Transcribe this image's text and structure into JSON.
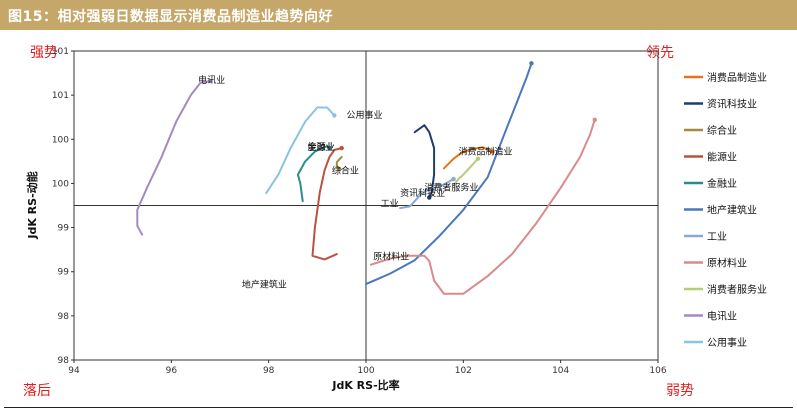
{
  "header": {
    "title": "图15：相对强弱日数据显示消费品制造业趋势向好"
  },
  "quadrants": {
    "top_left": "强势",
    "top_right": "领先",
    "bottom_left": "落后",
    "bottom_right": "弱势"
  },
  "chart_data": {
    "type": "line",
    "subtype": "relative-rotation-graph",
    "xlabel": "JdK RS-比率",
    "ylabel": "JdK RS-动能",
    "xlim": [
      94,
      106
    ],
    "ylim": [
      98,
      101.5
    ],
    "x_ticks": [
      94,
      96,
      98,
      100,
      102,
      104,
      106
    ],
    "y_ticks": [
      {
        "value": 98,
        "label": "98"
      },
      {
        "value": 98.5,
        "label": "98"
      },
      {
        "value": 99,
        "label": "99"
      },
      {
        "value": 99.5,
        "label": "99"
      },
      {
        "value": 100,
        "label": "100"
      },
      {
        "value": 100.5,
        "label": "100"
      },
      {
        "value": 101,
        "label": "101"
      },
      {
        "value": 101.5,
        "label": "101"
      }
    ],
    "grid": false,
    "legend_position": "right",
    "series": [
      {
        "name": "消费品制造业",
        "color": "#e8731a",
        "label_at": [
          101.9,
          100.33
        ],
        "points": [
          [
            101.6,
            100.17
          ],
          [
            101.8,
            100.28
          ],
          [
            102.0,
            100.36
          ],
          [
            102.2,
            100.39
          ],
          [
            102.4,
            100.41
          ],
          [
            102.5,
            100.38
          ],
          [
            102.6,
            100.36
          ]
        ]
      },
      {
        "name": "资讯科技业",
        "color": "#1f3d6d",
        "label_at": [
          100.7,
          99.86
        ],
        "points": [
          [
            101.0,
            100.58
          ],
          [
            101.2,
            100.66
          ],
          [
            101.3,
            100.58
          ],
          [
            101.4,
            100.4
          ],
          [
            101.4,
            100.1
          ],
          [
            101.35,
            99.9
          ],
          [
            101.3,
            99.84
          ]
        ]
      },
      {
        "name": "综合业",
        "color": "#a58a3c",
        "label_at": [
          99.3,
          100.11
        ],
        "points": [
          [
            99.5,
            100.3
          ],
          [
            99.45,
            100.27
          ],
          [
            99.4,
            100.24
          ],
          [
            99.4,
            100.2
          ],
          [
            99.45,
            100.16
          ]
        ]
      },
      {
        "name": "能源业",
        "color": "#b9523e",
        "label_at": [
          98.8,
          100.38
        ],
        "points": [
          [
            99.4,
            99.2
          ],
          [
            99.15,
            99.14
          ],
          [
            98.9,
            99.18
          ],
          [
            98.95,
            99.5
          ],
          [
            99.05,
            99.9
          ],
          [
            99.15,
            100.15
          ],
          [
            99.25,
            100.3
          ],
          [
            99.35,
            100.38
          ],
          [
            99.5,
            100.4
          ]
        ]
      },
      {
        "name": "金融业",
        "color": "#2a8c8c",
        "label_at": [
          98.8,
          100.38
        ],
        "points": [
          [
            98.7,
            99.8
          ],
          [
            98.65,
            100.0
          ],
          [
            98.6,
            100.1
          ],
          [
            98.75,
            100.25
          ],
          [
            98.95,
            100.36
          ],
          [
            99.1,
            100.4
          ],
          [
            99.2,
            100.42
          ],
          [
            99.25,
            100.4
          ]
        ]
      },
      {
        "name": "地产建筑业",
        "color": "#4a78bb",
        "label_at": [
          97.45,
          98.82
        ],
        "points": [
          [
            100.0,
            98.86
          ],
          [
            100.5,
            98.98
          ],
          [
            101.0,
            99.13
          ],
          [
            101.5,
            99.4
          ],
          [
            102.0,
            99.7
          ],
          [
            102.5,
            100.07
          ],
          [
            102.8,
            100.5
          ],
          [
            103.1,
            100.92
          ],
          [
            103.3,
            101.2
          ],
          [
            103.4,
            101.36
          ]
        ]
      },
      {
        "name": "工业",
        "color": "#89a9d4",
        "label_at": [
          100.3,
          99.74
        ],
        "points": [
          [
            100.7,
            99.72
          ],
          [
            100.9,
            99.74
          ],
          [
            101.1,
            99.86
          ],
          [
            101.3,
            99.94
          ],
          [
            101.5,
            99.96
          ],
          [
            101.7,
            100.02
          ],
          [
            101.8,
            100.05
          ]
        ]
      },
      {
        "name": "原材料业",
        "color": "#d98a8a",
        "label_at": [
          100.15,
          99.14
        ],
        "points": [
          [
            100.1,
            99.08
          ],
          [
            100.5,
            99.15
          ],
          [
            100.8,
            99.18
          ],
          [
            101.2,
            99.18
          ],
          [
            101.3,
            99.12
          ],
          [
            101.4,
            98.9
          ],
          [
            101.6,
            98.75
          ],
          [
            102.0,
            98.75
          ],
          [
            102.5,
            98.95
          ],
          [
            103.0,
            99.2
          ],
          [
            103.5,
            99.55
          ],
          [
            104.0,
            99.95
          ],
          [
            104.4,
            100.3
          ],
          [
            104.6,
            100.55
          ],
          [
            104.7,
            100.72
          ]
        ]
      },
      {
        "name": "消费者服务业",
        "color": "#b5cc7a",
        "label_at": [
          101.2,
          99.92
        ],
        "points": [
          [
            101.8,
            99.98
          ],
          [
            101.9,
            100.05
          ],
          [
            102.0,
            100.1
          ],
          [
            102.1,
            100.16
          ],
          [
            102.2,
            100.22
          ],
          [
            102.3,
            100.28
          ]
        ]
      },
      {
        "name": "电讯业",
        "color": "#a38bc0",
        "label_at": [
          96.55,
          101.14
        ],
        "points": [
          [
            95.4,
            99.42
          ],
          [
            95.3,
            99.52
          ],
          [
            95.3,
            99.7
          ],
          [
            95.5,
            99.95
          ],
          [
            95.8,
            100.3
          ],
          [
            96.1,
            100.7
          ],
          [
            96.4,
            101.0
          ],
          [
            96.6,
            101.14
          ],
          [
            96.8,
            101.16
          ]
        ]
      },
      {
        "name": "公用事业",
        "color": "#88c4e4",
        "label_at": [
          99.6,
          100.74
        ],
        "points": [
          [
            97.95,
            99.89
          ],
          [
            98.2,
            100.1
          ],
          [
            98.45,
            100.4
          ],
          [
            98.75,
            100.7
          ],
          [
            99.0,
            100.86
          ],
          [
            99.2,
            100.86
          ],
          [
            99.35,
            100.77
          ]
        ]
      }
    ]
  }
}
